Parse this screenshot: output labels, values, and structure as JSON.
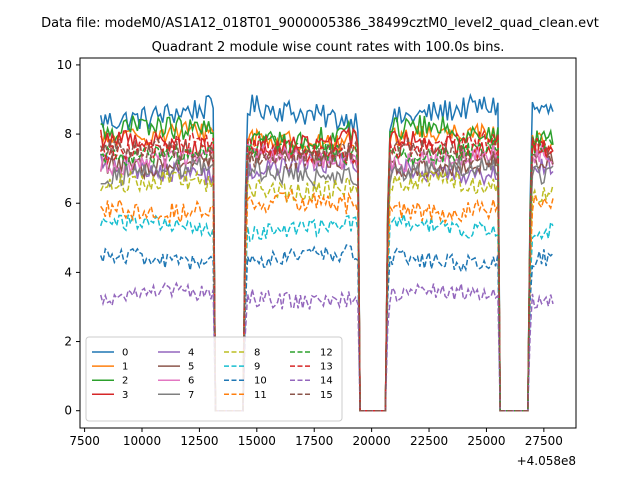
{
  "chart_data": {
    "type": "line",
    "suptitle": "Data file: modeM0/AS1A12_018T01_9000005386_38499cztM0_level2_quad_clean.evt",
    "title": "Quadrant 2 module wise count rates with 100.0s bins.",
    "xlabel": "",
    "ylabel": "",
    "x_offset_label": "+4.058e8",
    "xlim": [
      7300,
      28900
    ],
    "ylim": [
      -0.5,
      10.2
    ],
    "xticks": [
      7500,
      10000,
      12500,
      15000,
      17500,
      20000,
      22500,
      25000,
      27500
    ],
    "xtick_labels": [
      "7500",
      "10000",
      "12500",
      "15000",
      "17500",
      "20000",
      "22500",
      "25000",
      "27500"
    ],
    "yticks": [
      0,
      2,
      4,
      6,
      8,
      10
    ],
    "ytick_labels": [
      "0",
      "2",
      "4",
      "6",
      "8",
      "10"
    ],
    "x_start": 8200,
    "x_end": 27900,
    "bin_size": 100,
    "data_gaps": [
      [
        13150,
        14450
      ],
      [
        19400,
        20650
      ],
      [
        25550,
        26900
      ]
    ],
    "legend_location": "lower-left",
    "series": [
      {
        "name": "0",
        "level": 8.6,
        "noise": 0.35,
        "color": "#1f77b4",
        "dash": "solid"
      },
      {
        "name": "1",
        "level": 7.9,
        "noise": 0.3,
        "color": "#ff7f0e",
        "dash": "solid"
      },
      {
        "name": "2",
        "level": 8.0,
        "noise": 0.35,
        "color": "#2ca02c",
        "dash": "solid"
      },
      {
        "name": "3",
        "level": 7.7,
        "noise": 0.3,
        "color": "#d62728",
        "dash": "solid"
      },
      {
        "name": "4",
        "level": 7.0,
        "noise": 0.3,
        "color": "#9467bd",
        "dash": "solid"
      },
      {
        "name": "5",
        "level": 7.2,
        "noise": 0.3,
        "color": "#8c564b",
        "dash": "solid"
      },
      {
        "name": "6",
        "level": 7.3,
        "noise": 0.3,
        "color": "#e377c2",
        "dash": "solid"
      },
      {
        "name": "7",
        "level": 6.9,
        "noise": 0.3,
        "color": "#7f7f7f",
        "dash": "solid"
      },
      {
        "name": "8",
        "level": 6.5,
        "noise": 0.3,
        "color": "#bcbd22",
        "dash": "dashed"
      },
      {
        "name": "9",
        "level": 5.3,
        "noise": 0.25,
        "color": "#17becf",
        "dash": "dashed"
      },
      {
        "name": "10",
        "level": 4.4,
        "noise": 0.25,
        "color": "#1f77b4",
        "dash": "dashed"
      },
      {
        "name": "11",
        "level": 5.9,
        "noise": 0.3,
        "color": "#ff7f0e",
        "dash": "dashed"
      },
      {
        "name": "12",
        "level": 7.5,
        "noise": 0.3,
        "color": "#2ca02c",
        "dash": "dashed"
      },
      {
        "name": "13",
        "level": 7.6,
        "noise": 0.3,
        "color": "#d62728",
        "dash": "dashed"
      },
      {
        "name": "14",
        "level": 3.3,
        "noise": 0.25,
        "color": "#9467bd",
        "dash": "dashed"
      },
      {
        "name": "15",
        "level": 7.4,
        "noise": 0.3,
        "color": "#8c564b",
        "dash": "dashed"
      }
    ]
  }
}
